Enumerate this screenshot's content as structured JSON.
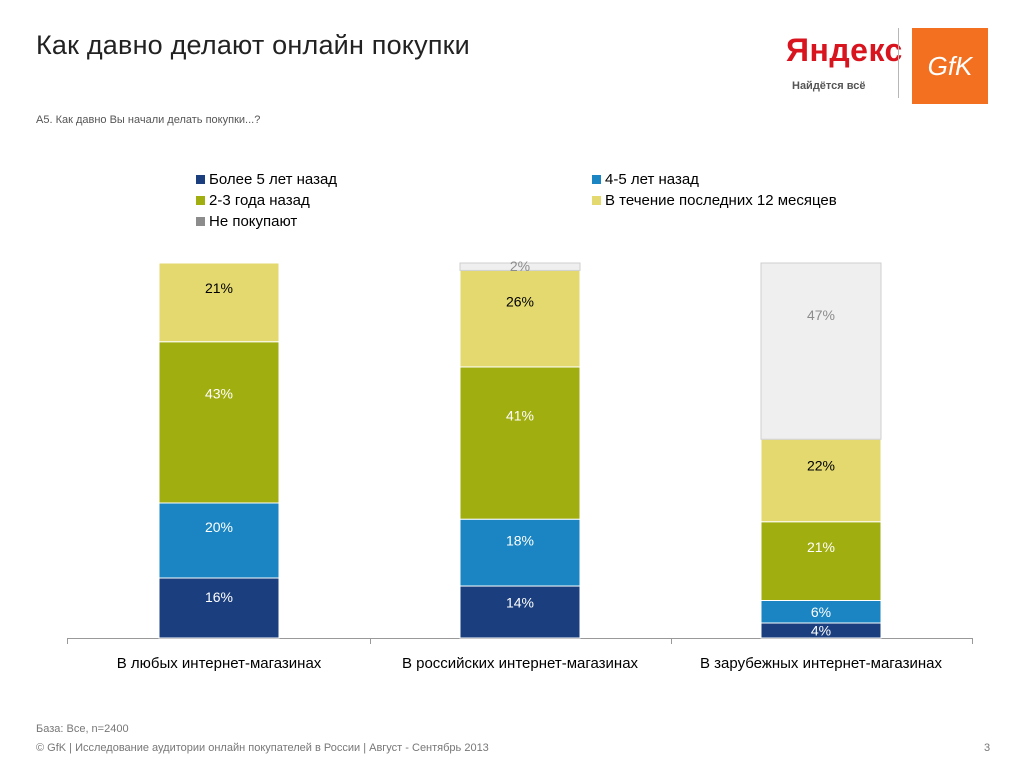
{
  "header": {
    "title": "Как давно делают онлайн покупки",
    "question": "А5. Как давно Вы начали делать покупки...?"
  },
  "logos": {
    "yandex": "Яндекс",
    "yandex_tagline": "Найдётся всё",
    "gfk": "GfK"
  },
  "footer": {
    "base": "База: Все, n=2400",
    "copyright": "© GfK | Исследование аудитории онлайн покупателей в России | Август - Сентябрь 2013",
    "page_number": "3"
  },
  "chart_data": {
    "type": "bar",
    "stacked": true,
    "categories": [
      "В любых интернет-магазинах",
      "В российских интернет-магазинах",
      "В зарубежных интернет-магазинах"
    ],
    "series": [
      {
        "name": "Более 5 лет назад",
        "color": "#1b3f7e",
        "values": [
          16,
          14,
          4
        ],
        "labels": [
          "16%",
          "14%",
          "4%"
        ]
      },
      {
        "name": "4-5 лет назад",
        "color": "#1a85c2",
        "values": [
          20,
          18,
          6
        ],
        "labels": [
          "20%",
          "18%",
          "6%"
        ]
      },
      {
        "name": "2-3 года назад",
        "color": "#a1ae0f",
        "values": [
          43,
          41,
          21
        ],
        "labels": [
          "43%",
          "41%",
          "21%"
        ]
      },
      {
        "name": "В течение последних 12 месяцев",
        "color": "#e3d96f",
        "values": [
          21,
          26,
          22
        ],
        "labels": [
          "21%",
          "26%",
          "22%"
        ]
      },
      {
        "name": "Не покупают",
        "color": "#efefef",
        "legend_color": "#8c8c8c",
        "values": [
          0,
          2,
          47
        ],
        "labels": [
          "",
          "2%",
          "47%"
        ]
      }
    ],
    "ylim": [
      0,
      100
    ],
    "legend_position": "top"
  }
}
